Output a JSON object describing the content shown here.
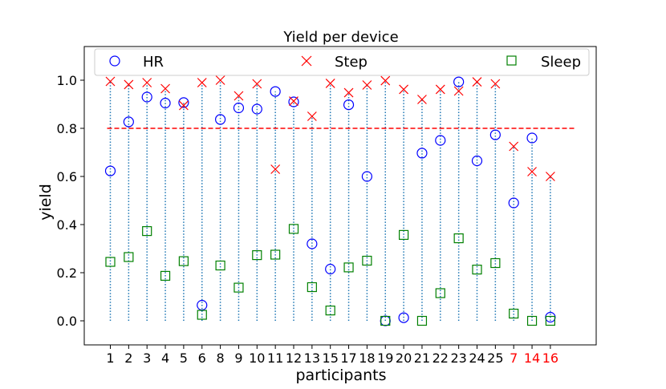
{
  "chart_data": {
    "type": "scatter",
    "title": "Yield per device",
    "xlabel": "participants",
    "ylabel": "yield",
    "categories": [
      "1",
      "2",
      "3",
      "4",
      "5",
      "6",
      "8",
      "9",
      "10",
      "11",
      "12",
      "13",
      "15",
      "17",
      "18",
      "19",
      "20",
      "21",
      "22",
      "23",
      "24",
      "25",
      "7",
      "14",
      "16"
    ],
    "highlighted_categories": [
      "7",
      "14",
      "16"
    ],
    "highlight_color": "#ff0000",
    "ylim": [
      -0.1,
      1.14
    ],
    "yticks": [
      "0.0",
      "0.2",
      "0.4",
      "0.6",
      "0.8",
      "1.0"
    ],
    "threshold": {
      "value": 0.8,
      "color": "#ff0000",
      "style": "dashed"
    },
    "stem_color": "#1f77b4",
    "legend_position": "top",
    "series": [
      {
        "name": "HR",
        "marker": "circle",
        "color": "#0000ff",
        "values": [
          0.623,
          0.827,
          0.93,
          0.905,
          0.907,
          0.065,
          0.837,
          0.885,
          0.88,
          0.953,
          0.91,
          0.32,
          0.215,
          0.898,
          0.6,
          0.0,
          0.013,
          0.697,
          0.75,
          0.993,
          0.665,
          0.773,
          0.49,
          0.76,
          0.015
        ]
      },
      {
        "name": "Step",
        "marker": "x",
        "color": "#ff0000",
        "values": [
          0.995,
          0.982,
          0.99,
          0.965,
          0.895,
          0.99,
          1.0,
          0.935,
          0.985,
          0.63,
          0.913,
          0.85,
          0.987,
          0.948,
          0.98,
          0.998,
          0.962,
          0.92,
          0.962,
          0.955,
          0.993,
          0.985,
          0.725,
          0.62,
          0.6
        ]
      },
      {
        "name": "Sleep",
        "marker": "square",
        "color": "#008000",
        "values": [
          0.245,
          0.265,
          0.373,
          0.187,
          0.248,
          0.025,
          0.23,
          0.138,
          0.273,
          0.275,
          0.382,
          0.14,
          0.043,
          0.222,
          0.25,
          0.0,
          0.357,
          0.0,
          0.115,
          0.343,
          0.213,
          0.24,
          0.03,
          0.0,
          0.0
        ]
      }
    ]
  }
}
